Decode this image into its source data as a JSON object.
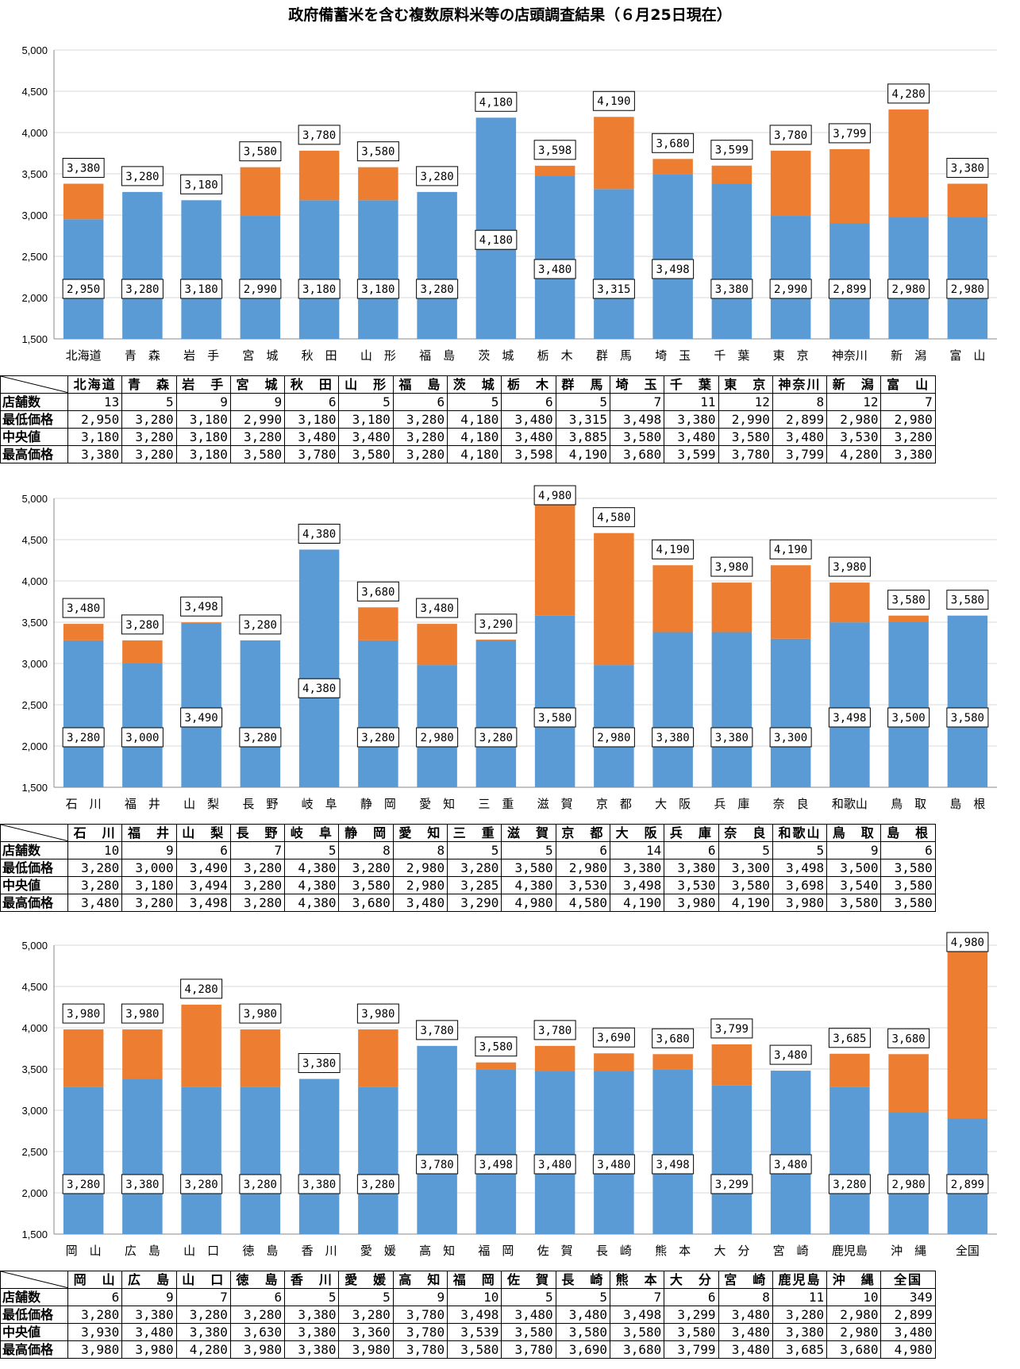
{
  "title": "政府備蓄米を含む複数原料米等の店頭調査結果（６月25日現在）",
  "colors": {
    "low": "#5B9BD5",
    "high": "#ED7D31",
    "grid": "#D9D9D9"
  },
  "row_labels": [
    "店舗数",
    "最低価格",
    "中央値",
    "最高価格"
  ],
  "chart_data": [
    {
      "type": "bar",
      "stacked": true,
      "ylim": [
        1500,
        5000
      ],
      "yticks": [
        "1,500",
        "2,000",
        "2,500",
        "3,000",
        "3,500",
        "4,000",
        "4,500",
        "5,000"
      ],
      "categories": [
        "北海道",
        "青　森",
        "岩　手",
        "宮　城",
        "秋　田",
        "山　形",
        "福　島",
        "茨　城",
        "栃　木",
        "群　馬",
        "埼　玉",
        "千　葉",
        "東　京",
        "神奈川",
        "新　潟",
        "富　山"
      ],
      "stores": [
        "13",
        "5",
        "9",
        "9",
        "6",
        "5",
        "6",
        "5",
        "6",
        "5",
        "7",
        "11",
        "12",
        "8",
        "12",
        "7"
      ],
      "min": [
        2950,
        3280,
        3180,
        2990,
        3180,
        3180,
        3280,
        4180,
        3480,
        3315,
        3498,
        3380,
        2990,
        2899,
        2980,
        2980
      ],
      "median": [
        "3,180",
        "3,280",
        "3,180",
        "3,280",
        "3,480",
        "3,480",
        "3,280",
        "4,180",
        "3,480",
        "3,885",
        "3,580",
        "3,480",
        "3,580",
        "3,480",
        "3,530",
        "3,280"
      ],
      "max": [
        3380,
        3280,
        3180,
        3580,
        3780,
        3580,
        3280,
        4180,
        3598,
        4190,
        3680,
        3599,
        3780,
        3799,
        4280,
        3380
      ],
      "min_labels": [
        "2,950",
        "3,280",
        "3,180",
        "2,990",
        "3,180",
        "3,180",
        "3,280",
        "4,180",
        "3,480",
        "3,315",
        "3,498",
        "3,380",
        "2,990",
        "2,899",
        "2,980",
        "2,980"
      ],
      "max_labels": [
        "3,380",
        "3,280",
        "3,180",
        "3,580",
        "3,780",
        "3,580",
        "3,280",
        "4,180",
        "3,598",
        "4,190",
        "3,680",
        "3,599",
        "3,780",
        "3,799",
        "4,280",
        "3,380"
      ]
    },
    {
      "type": "bar",
      "stacked": true,
      "ylim": [
        1500,
        5000
      ],
      "yticks": [
        "1,500",
        "2,000",
        "2,500",
        "3,000",
        "3,500",
        "4,000",
        "4,500",
        "5,000"
      ],
      "categories": [
        "石　川",
        "福　井",
        "山　梨",
        "長　野",
        "岐　阜",
        "静　岡",
        "愛　知",
        "三　重",
        "滋　賀",
        "京　都",
        "大　阪",
        "兵　庫",
        "奈　良",
        "和歌山",
        "鳥　取",
        "島　根"
      ],
      "stores": [
        "10",
        "9",
        "6",
        "7",
        "5",
        "8",
        "8",
        "5",
        "5",
        "6",
        "14",
        "6",
        "5",
        "5",
        "9",
        "6"
      ],
      "min": [
        3280,
        3000,
        3490,
        3280,
        4380,
        3280,
        2980,
        3280,
        3580,
        2980,
        3380,
        3380,
        3300,
        3498,
        3500,
        3580
      ],
      "median": [
        "3,280",
        "3,180",
        "3,494",
        "3,280",
        "4,380",
        "3,580",
        "2,980",
        "3,285",
        "4,380",
        "3,530",
        "3,498",
        "3,530",
        "3,580",
        "3,698",
        "3,540",
        "3,580"
      ],
      "max": [
        3480,
        3280,
        3498,
        3280,
        4380,
        3680,
        3480,
        3290,
        4980,
        4580,
        4190,
        3980,
        4190,
        3980,
        3580,
        3580
      ],
      "min_labels": [
        "3,280",
        "3,000",
        "3,490",
        "3,280",
        "4,380",
        "3,280",
        "2,980",
        "3,280",
        "3,580",
        "2,980",
        "3,380",
        "3,380",
        "3,300",
        "3,498",
        "3,500",
        "3,580"
      ],
      "max_labels": [
        "3,480",
        "3,280",
        "3,498",
        "3,280",
        "4,380",
        "3,680",
        "3,480",
        "3,290",
        "4,980",
        "4,580",
        "4,190",
        "3,980",
        "4,190",
        "3,980",
        "3,580",
        "3,580"
      ]
    },
    {
      "type": "bar",
      "stacked": true,
      "ylim": [
        1500,
        5000
      ],
      "yticks": [
        "1,500",
        "2,000",
        "2,500",
        "3,000",
        "3,500",
        "4,000",
        "4,500",
        "5,000"
      ],
      "categories": [
        "岡　山",
        "広　島",
        "山　口",
        "徳　島",
        "香　川",
        "愛　媛",
        "高　知",
        "福　岡",
        "佐　賀",
        "長　崎",
        "熊　本",
        "大　分",
        "宮　崎",
        "鹿児島",
        "沖　縄",
        "全国"
      ],
      "stores": [
        "6",
        "9",
        "7",
        "6",
        "5",
        "5",
        "9",
        "10",
        "5",
        "5",
        "7",
        "6",
        "8",
        "11",
        "10",
        "349"
      ],
      "min": [
        3280,
        3380,
        3280,
        3280,
        3380,
        3280,
        3780,
        3498,
        3480,
        3480,
        3498,
        3299,
        3480,
        3280,
        2980,
        2899
      ],
      "median": [
        "3,930",
        "3,480",
        "3,380",
        "3,630",
        "3,380",
        "3,360",
        "3,780",
        "3,539",
        "3,580",
        "3,580",
        "3,580",
        "3,580",
        "3,480",
        "3,380",
        "2,980",
        "3,480"
      ],
      "max": [
        3980,
        3980,
        4280,
        3980,
        3380,
        3980,
        3780,
        3580,
        3780,
        3690,
        3680,
        3799,
        3480,
        3685,
        3680,
        4980
      ],
      "min_labels": [
        "3,280",
        "3,380",
        "3,280",
        "3,280",
        "3,380",
        "3,280",
        "3,780",
        "3,498",
        "3,480",
        "3,480",
        "3,498",
        "3,299",
        "3,480",
        "3,280",
        "2,980",
        "2,899"
      ],
      "max_labels": [
        "3,980",
        "3,980",
        "4,280",
        "3,980",
        "3,380",
        "3,980",
        "3,780",
        "3,580",
        "3,780",
        "3,690",
        "3,680",
        "3,799",
        "3,480",
        "3,685",
        "3,680",
        "4,980"
      ]
    }
  ]
}
